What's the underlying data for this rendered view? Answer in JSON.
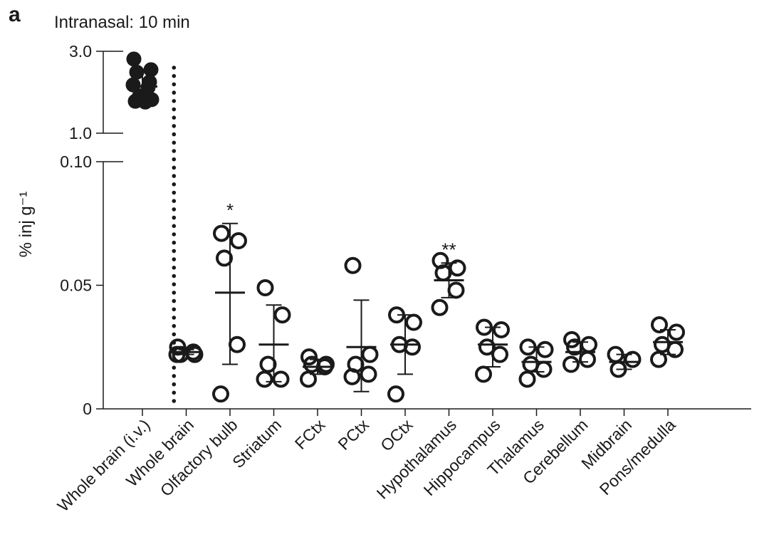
{
  "chart_data": {
    "type": "scatter",
    "panel_label": "a",
    "title": "Intranasal: 10 min",
    "ylabel": "% inj g⁻¹",
    "y_axis_break": true,
    "upper_segment": {
      "ylim": [
        1.0,
        3.0
      ],
      "ticks": [
        1.0,
        3.0
      ],
      "tick_labels": [
        "1.0",
        "3.0"
      ]
    },
    "lower_segment": {
      "ylim": [
        0,
        0.1
      ],
      "ticks": [
        0,
        0.05,
        0.1
      ],
      "tick_labels": [
        "0",
        "0.05",
        "0.10"
      ]
    },
    "categories": [
      "Whole brain (i.v.)",
      "Whole brain",
      "Olfactory bulb",
      "Striatum",
      "FCtx",
      "PCtx",
      "OCtx",
      "Hypothalamus",
      "Hippocampus",
      "Thalamus",
      "Cerebellum",
      "Midbrain",
      "Pons/medulla"
    ],
    "series": [
      {
        "category": "Whole brain (i.v.)",
        "segment": "upper",
        "filled": true,
        "points": [
          2.81,
          2.55,
          2.49,
          2.25,
          2.18,
          2.12,
          1.91,
          1.82,
          1.78,
          1.76
        ],
        "mean": 2.14,
        "sd": [
          1.73,
          2.51
        ],
        "significance": ""
      },
      {
        "category": "Whole brain",
        "segment": "lower",
        "filled": false,
        "points": [
          0.025,
          0.022,
          0.022,
          0.023,
          0.022
        ],
        "mean": 0.023,
        "sd": [
          0.022,
          0.024
        ],
        "significance": ""
      },
      {
        "category": "Olfactory bulb",
        "segment": "lower",
        "filled": false,
        "points": [
          0.071,
          0.068,
          0.061,
          0.026,
          0.006
        ],
        "mean": 0.047,
        "sd": [
          0.018,
          0.075
        ],
        "significance": "*"
      },
      {
        "category": "Striatum",
        "segment": "lower",
        "filled": false,
        "points": [
          0.049,
          0.038,
          0.018,
          0.012,
          0.012
        ],
        "mean": 0.026,
        "sd": [
          0.011,
          0.042
        ],
        "significance": ""
      },
      {
        "category": "FCtx",
        "segment": "lower",
        "filled": false,
        "points": [
          0.021,
          0.018,
          0.018,
          0.017,
          0.012
        ],
        "mean": 0.017,
        "sd": [
          0.014,
          0.02
        ],
        "significance": ""
      },
      {
        "category": "PCtx",
        "segment": "lower",
        "filled": false,
        "points": [
          0.058,
          0.022,
          0.018,
          0.014,
          0.013
        ],
        "mean": 0.025,
        "sd": [
          0.007,
          0.044
        ],
        "significance": ""
      },
      {
        "category": "OCtx",
        "segment": "lower",
        "filled": false,
        "points": [
          0.038,
          0.035,
          0.026,
          0.025,
          0.006
        ],
        "mean": 0.026,
        "sd": [
          0.014,
          0.038
        ],
        "significance": ""
      },
      {
        "category": "Hypothalamus",
        "segment": "lower",
        "filled": false,
        "points": [
          0.06,
          0.057,
          0.055,
          0.048,
          0.041
        ],
        "mean": 0.052,
        "sd": [
          0.045,
          0.059
        ],
        "significance": "**"
      },
      {
        "category": "Hippocampus",
        "segment": "lower",
        "filled": false,
        "points": [
          0.033,
          0.032,
          0.025,
          0.022,
          0.014
        ],
        "mean": 0.026,
        "sd": [
          0.017,
          0.033
        ],
        "significance": ""
      },
      {
        "category": "Thalamus",
        "segment": "lower",
        "filled": false,
        "points": [
          0.025,
          0.024,
          0.018,
          0.016,
          0.012
        ],
        "mean": 0.019,
        "sd": [
          0.015,
          0.025
        ],
        "significance": ""
      },
      {
        "category": "Cerebellum",
        "segment": "lower",
        "filled": false,
        "points": [
          0.028,
          0.026,
          0.025,
          0.02,
          0.018
        ],
        "mean": 0.023,
        "sd": [
          0.019,
          0.027
        ],
        "significance": ""
      },
      {
        "category": "Midbrain",
        "segment": "lower",
        "filled": false,
        "points": [
          0.022,
          0.02,
          0.016
        ],
        "mean": 0.019,
        "sd": [
          0.016,
          0.022
        ],
        "significance": ""
      },
      {
        "category": "Pons/medulla",
        "segment": "lower",
        "filled": false,
        "points": [
          0.034,
          0.031,
          0.026,
          0.024,
          0.02
        ],
        "mean": 0.027,
        "sd": [
          0.022,
          0.032
        ],
        "significance": ""
      }
    ],
    "separator_after_category": "Whole brain (i.v.)",
    "grid": false,
    "legend": "none",
    "colors": {
      "ink": "#1a1a1a",
      "background": "#ffffff"
    }
  }
}
